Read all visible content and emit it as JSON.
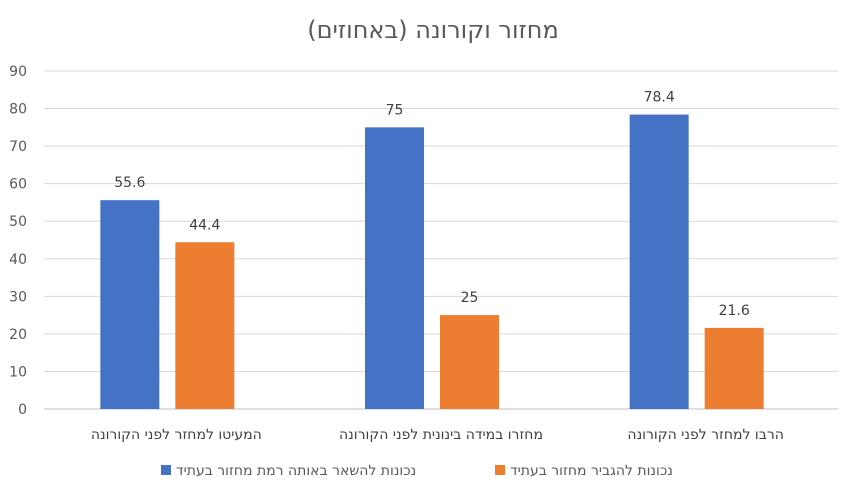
{
  "chart_data": {
    "type": "bar",
    "title": "מחזור וקורונה (באחוזים)",
    "categories": [
      "המעיטו למחזר לפני הקורונה",
      "מחזרו במידה בינונית לפני הקורונה",
      "הרבו למחזר לפני הקורונה"
    ],
    "series": [
      {
        "name": "נכונות להשאר באותה רמת מחזור בעתיד",
        "color": "#4472C4",
        "values": [
          55.6,
          75,
          78.4
        ]
      },
      {
        "name": "נכונות להגביר מחזור בעתיד",
        "color": "#ED7D31",
        "values": [
          44.4,
          25,
          21.6
        ]
      }
    ],
    "ylim": [
      0,
      90
    ],
    "yticks": [
      0,
      10,
      20,
      30,
      40,
      50,
      60,
      70,
      80,
      90
    ],
    "grid": true,
    "legend_position": "bottom",
    "xlabel": "",
    "ylabel": ""
  }
}
